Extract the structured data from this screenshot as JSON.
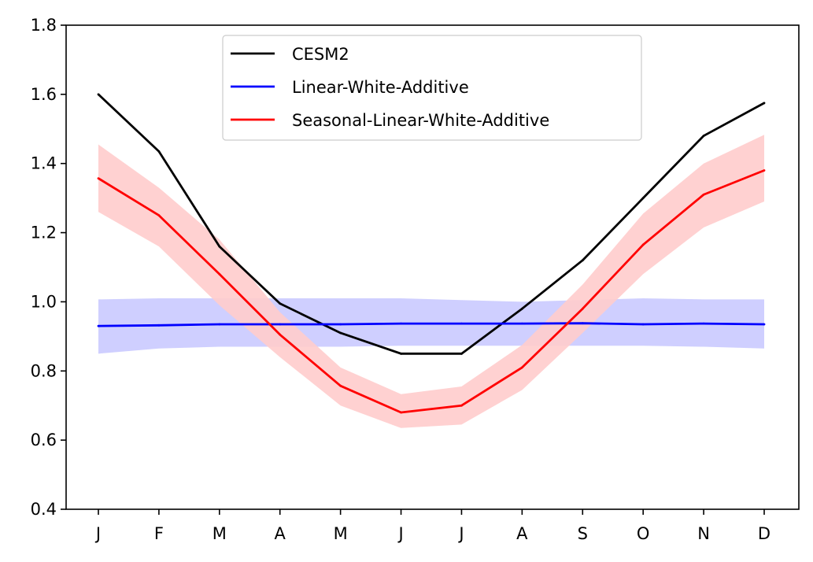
{
  "chart_data": {
    "type": "line",
    "title": "",
    "xlabel": "",
    "ylabel": "",
    "categories": [
      "J",
      "F",
      "M",
      "A",
      "M",
      "J",
      "J",
      "A",
      "S",
      "O",
      "N",
      "D"
    ],
    "ylim": [
      0.4,
      1.8
    ],
    "yticks": [
      "0.4",
      "0.6",
      "0.8",
      "1.0",
      "1.2",
      "1.4",
      "1.6",
      "1.8"
    ],
    "grid": false,
    "legend_position": "top-center",
    "series": [
      {
        "name": "CESM2",
        "color": "#000000",
        "values": [
          1.6,
          1.435,
          1.16,
          0.995,
          0.91,
          0.85,
          0.85,
          0.98,
          1.12,
          1.3,
          1.48,
          1.575
        ]
      },
      {
        "name": "Linear-White-Additive",
        "color": "#0000ff",
        "band_color": "#ccccff",
        "values": [
          0.93,
          0.932,
          0.935,
          0.935,
          0.935,
          0.937,
          0.937,
          0.937,
          0.938,
          0.935,
          0.937,
          0.935
        ],
        "lower": [
          0.85,
          0.865,
          0.87,
          0.87,
          0.87,
          0.873,
          0.873,
          0.873,
          0.873,
          0.873,
          0.87,
          0.865
        ],
        "upper": [
          1.007,
          1.01,
          1.01,
          1.01,
          1.01,
          1.01,
          1.005,
          1.0,
          1.005,
          1.01,
          1.007,
          1.007
        ]
      },
      {
        "name": "Seasonal-Linear-White-Additive",
        "color": "#ff0000",
        "band_color": "#ffcccc",
        "values": [
          1.357,
          1.25,
          1.08,
          0.905,
          0.757,
          0.68,
          0.7,
          0.81,
          0.98,
          1.165,
          1.31,
          1.38
        ],
        "lower": [
          1.26,
          1.16,
          0.99,
          0.84,
          0.7,
          0.635,
          0.645,
          0.745,
          0.91,
          1.08,
          1.215,
          1.29
        ],
        "upper": [
          1.455,
          1.33,
          1.18,
          0.97,
          0.81,
          0.733,
          0.755,
          0.875,
          1.05,
          1.255,
          1.4,
          1.483
        ]
      }
    ]
  }
}
